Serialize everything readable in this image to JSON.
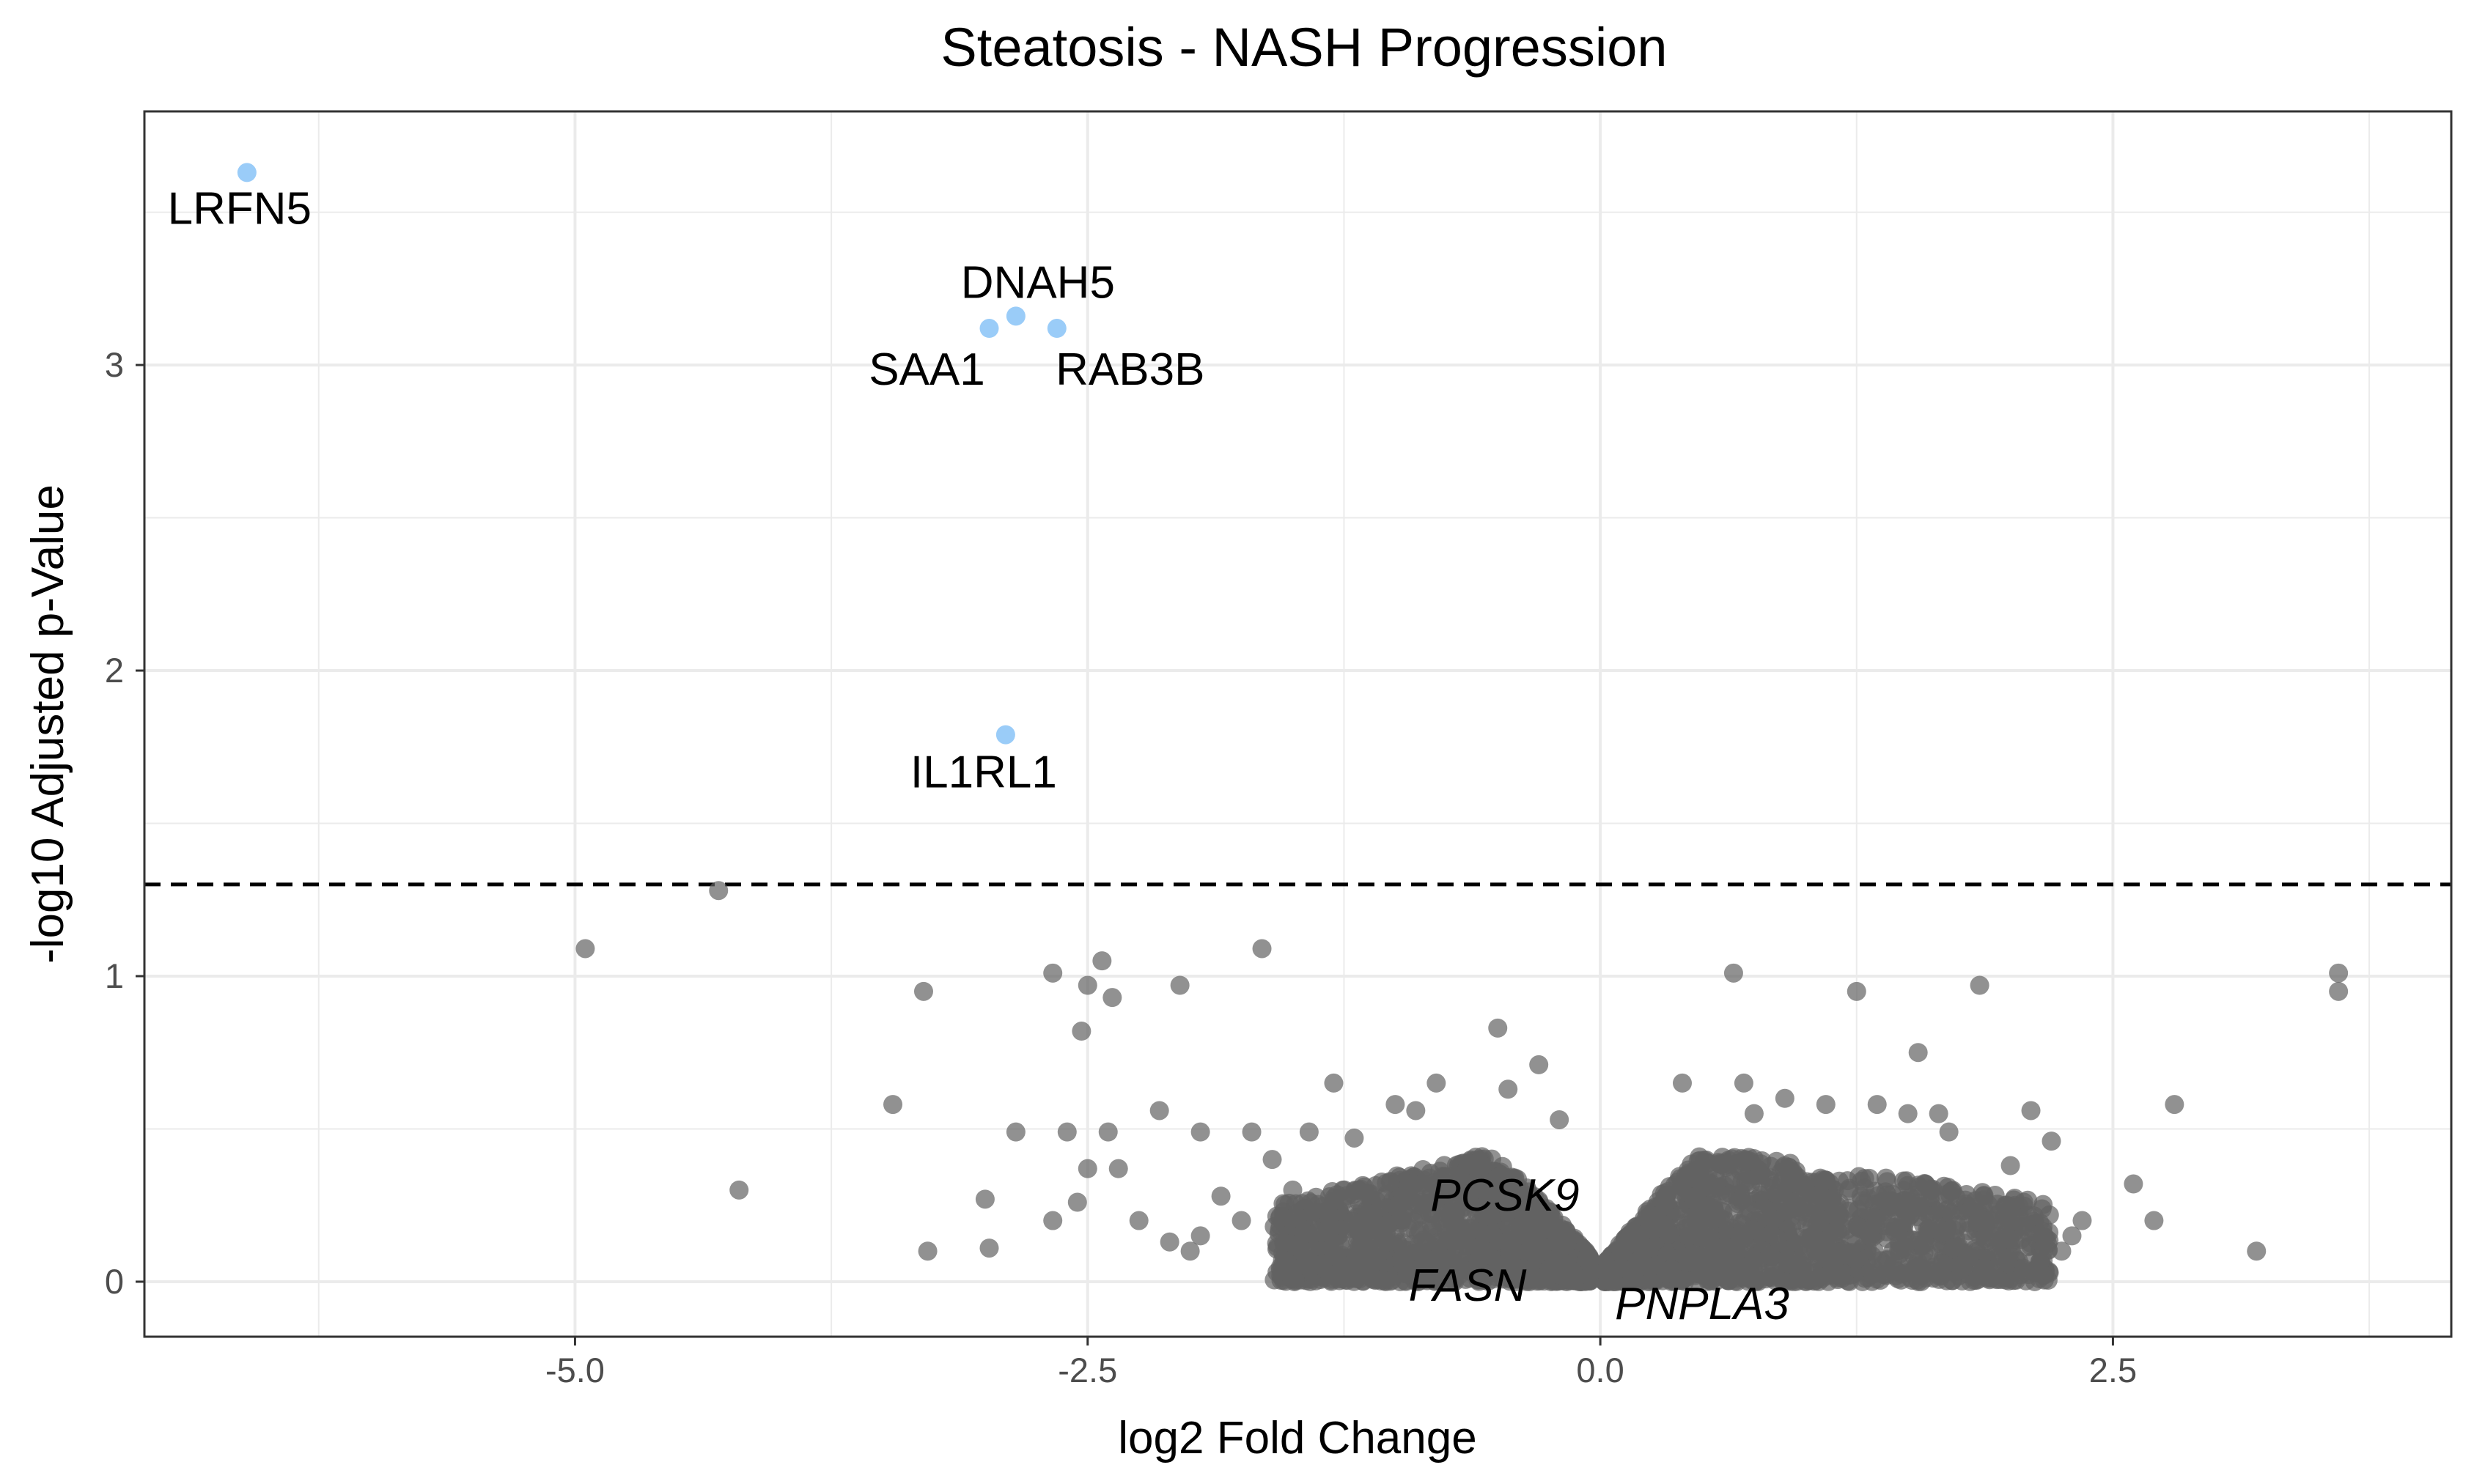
{
  "chart_data": {
    "type": "scatter",
    "title": "Steatosis - NASH Progression",
    "xlabel": "log2 Fold Change",
    "ylabel": "-log10 Adjusted p-Value",
    "xlim": [
      -7.1,
      4.15
    ],
    "ylim": [
      -0.18,
      3.83
    ],
    "x_ticks": [
      {
        "value": -5.0,
        "label": "-5.0"
      },
      {
        "value": -2.5,
        "label": "-2.5"
      },
      {
        "value": 0.0,
        "label": "0.0"
      },
      {
        "value": 2.5,
        "label": "2.5"
      }
    ],
    "y_ticks": [
      {
        "value": 0,
        "label": "0"
      },
      {
        "value": 1,
        "label": "1"
      },
      {
        "value": 2,
        "label": "2"
      },
      {
        "value": 3,
        "label": "3"
      }
    ],
    "grid": true,
    "significance_threshold": 1.3,
    "colors": {
      "significant": "#8fc7f7",
      "not_significant": "#636363",
      "threshold_line": "#000000",
      "grid": "#ebebeb",
      "panel_border": "#333333"
    },
    "significant_points": [
      {
        "x": -6.6,
        "y": 3.63,
        "label": "LRFN5"
      },
      {
        "x": -2.85,
        "y": 3.16,
        "label": "DNAH5"
      },
      {
        "x": -2.98,
        "y": 3.12,
        "label": "SAA1"
      },
      {
        "x": -2.65,
        "y": 3.12,
        "label": "RAB3B"
      },
      {
        "x": -2.9,
        "y": 1.79,
        "label": "IL1RL1"
      }
    ],
    "highlighted_genes": [
      {
        "label": "PCSK9",
        "x": -0.5,
        "y": 0.18
      },
      {
        "label": "FASN",
        "x": -0.6,
        "y": 0.08
      },
      {
        "label": "PNPLA3",
        "x": 0.05,
        "y": 0.03
      }
    ],
    "outlier_points": [
      [
        -4.3,
        1.28
      ],
      [
        -4.95,
        1.09
      ],
      [
        -4.2,
        0.3
      ],
      [
        -3.3,
        0.95
      ],
      [
        -3.45,
        0.58
      ],
      [
        -3.28,
        0.1
      ],
      [
        -3.0,
        0.27
      ],
      [
        -2.98,
        0.11
      ],
      [
        -2.85,
        0.49
      ],
      [
        -2.67,
        1.01
      ],
      [
        -2.43,
        1.05
      ],
      [
        -2.5,
        0.97
      ],
      [
        -2.53,
        0.82
      ],
      [
        -2.38,
        0.93
      ],
      [
        -2.05,
        0.97
      ],
      [
        -1.65,
        1.09
      ],
      [
        -2.6,
        0.49
      ],
      [
        -2.67,
        0.2
      ],
      [
        -2.55,
        0.26
      ],
      [
        -2.5,
        0.37
      ],
      [
        -2.4,
        0.49
      ],
      [
        -2.35,
        0.37
      ],
      [
        -2.15,
        0.56
      ],
      [
        -1.95,
        0.49
      ],
      [
        -1.7,
        0.49
      ],
      [
        -1.6,
        0.4
      ],
      [
        -1.5,
        0.3
      ],
      [
        -1.42,
        0.49
      ],
      [
        -1.3,
        0.65
      ],
      [
        -1.2,
        0.47
      ],
      [
        -1.0,
        0.58
      ],
      [
        -0.9,
        0.56
      ],
      [
        -0.8,
        0.65
      ],
      [
        -0.5,
        0.83
      ],
      [
        -0.45,
        0.63
      ],
      [
        -0.3,
        0.71
      ],
      [
        -0.2,
        0.53
      ],
      [
        -1.95,
        0.15
      ],
      [
        -2.1,
        0.13
      ],
      [
        -2.25,
        0.2
      ],
      [
        -2.0,
        0.1
      ],
      [
        -1.85,
        0.28
      ],
      [
        -1.75,
        0.2
      ],
      [
        -1.55,
        0.07
      ],
      [
        -1.4,
        0.05
      ],
      [
        1.55,
        0.75
      ],
      [
        1.85,
        0.97
      ],
      [
        1.25,
        0.95
      ],
      [
        0.65,
        1.01
      ],
      [
        3.6,
        1.01
      ],
      [
        3.6,
        0.95
      ],
      [
        2.8,
        0.58
      ],
      [
        2.6,
        0.32
      ],
      [
        2.7,
        0.2
      ],
      [
        3.2,
        0.1
      ],
      [
        2.2,
        0.46
      ],
      [
        2.1,
        0.56
      ],
      [
        2.0,
        0.38
      ],
      [
        1.9,
        0.2
      ],
      [
        1.8,
        0.08
      ],
      [
        2.35,
        0.2
      ],
      [
        2.3,
        0.15
      ],
      [
        2.25,
        0.1
      ],
      [
        1.7,
        0.49
      ],
      [
        1.65,
        0.55
      ],
      [
        1.5,
        0.55
      ],
      [
        1.35,
        0.58
      ],
      [
        1.1,
        0.58
      ],
      [
        0.9,
        0.6
      ],
      [
        0.7,
        0.65
      ],
      [
        0.4,
        0.65
      ],
      [
        0.75,
        0.55
      ]
    ],
    "background_cluster": {
      "count": 3200,
      "left_x_range": [
        -1.6,
        -0.05
      ],
      "right_x_range": [
        0.02,
        2.2
      ],
      "y_range": [
        0.0,
        0.5
      ]
    }
  }
}
